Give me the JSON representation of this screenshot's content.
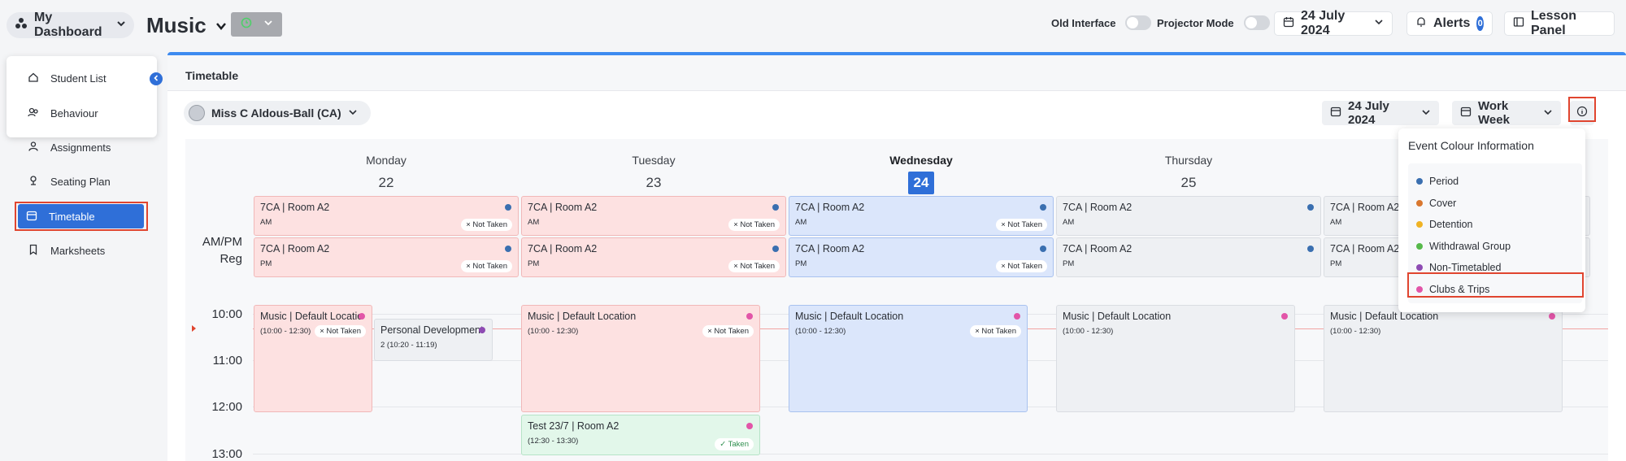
{
  "header": {
    "dashboard_label": "My Dashboard",
    "page_title": "Music",
    "old_interface_label": "Old Interface",
    "projector_mode_label": "Projector Mode",
    "date_label": "24 July 2024",
    "alerts_label": "Alerts",
    "alerts_count": "0",
    "lesson_panel_label": "Lesson Panel"
  },
  "sidebar": {
    "items": [
      {
        "label": "Student List",
        "icon": "home-icon"
      },
      {
        "label": "Behaviour",
        "icon": "users-icon"
      },
      {
        "label": "Assignments",
        "icon": "user-icon"
      },
      {
        "label": "Seating Plan",
        "icon": "seat-icon"
      },
      {
        "label": "Timetable",
        "icon": "calendar-icon",
        "active": true
      },
      {
        "label": "Marksheets",
        "icon": "bookmark-icon"
      }
    ]
  },
  "timetable": {
    "title": "Timetable",
    "teacher": "Miss C Aldous-Ball (CA)",
    "date": "24 July 2024",
    "view": "Work Week",
    "days": [
      {
        "name": "Monday",
        "num": "22"
      },
      {
        "name": "Tuesday",
        "num": "23"
      },
      {
        "name": "Wednesday",
        "num": "24",
        "today": true
      },
      {
        "name": "Thursday",
        "num": "25"
      }
    ],
    "reg_label_1": "AM/PM",
    "reg_label_2": "Reg",
    "times": [
      "10:00",
      "11:00",
      "12:00",
      "13:00"
    ],
    "reg_events": {
      "title": "7CA | Room A2",
      "am": "AM",
      "pm": "PM",
      "not_taken": "× Not Taken"
    },
    "music_title": "Music | Default Location",
    "music_time": "(10:00 - 12:30)",
    "personal_title": "Personal Development",
    "personal_time": "2 (10:20 - 11:19)",
    "test_title": "Test 23/7 | Room A2",
    "test_time": "(12:30 - 13:30)",
    "taken": "✓ Taken"
  },
  "legend": {
    "title": "Event Colour Information",
    "items": [
      {
        "label": "Period",
        "color": "#3a6fb0"
      },
      {
        "label": "Cover",
        "color": "#d9772f"
      },
      {
        "label": "Detention",
        "color": "#f0b323"
      },
      {
        "label": "Withdrawal Group",
        "color": "#56b94a"
      },
      {
        "label": "Non-Timetabled",
        "color": "#8e4bb3"
      },
      {
        "label": "Clubs & Trips",
        "color": "#e255a8"
      }
    ]
  }
}
